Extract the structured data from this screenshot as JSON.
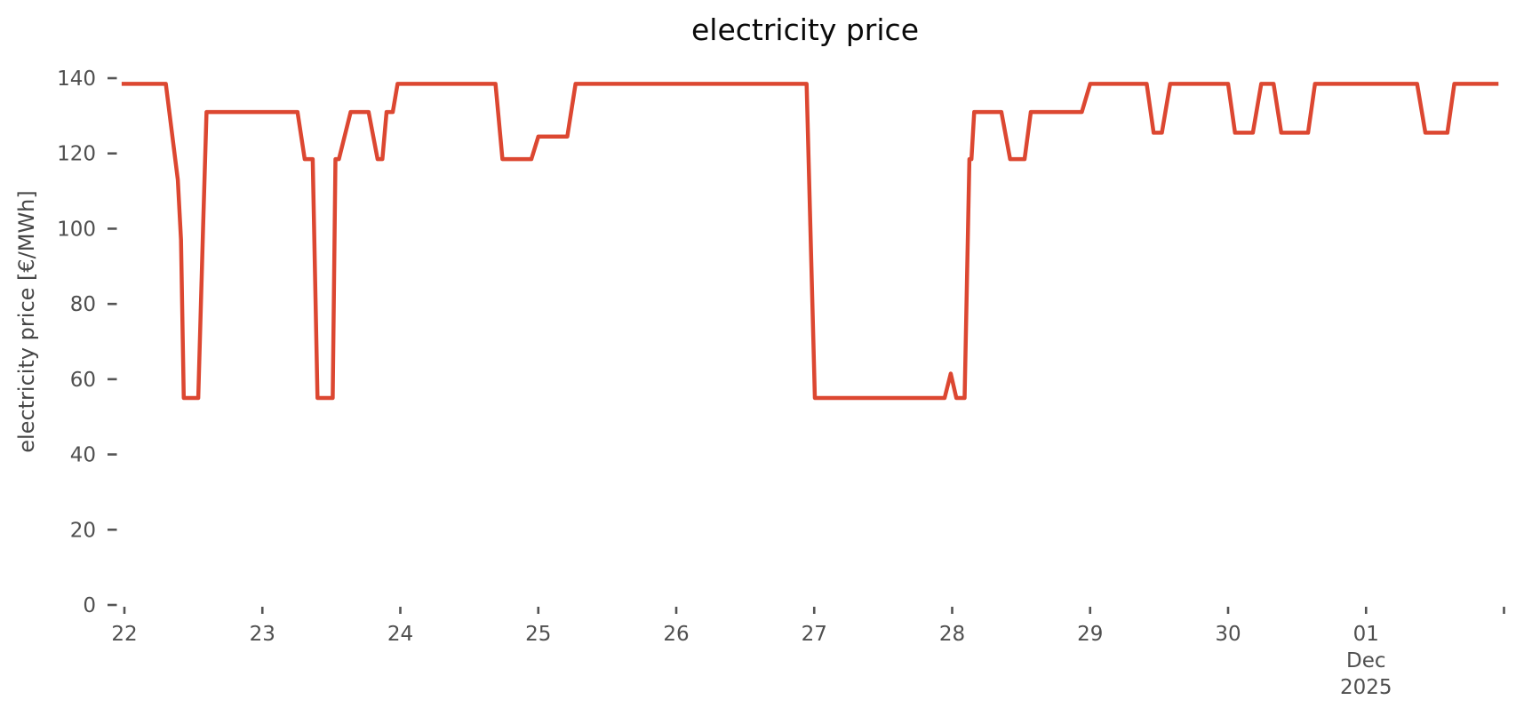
{
  "title": "electricity price",
  "colors": {
    "line": "#dc4731",
    "tick_mark": "#545454",
    "tick_label": "#4f4f4f",
    "axis_title": "#474747",
    "title": "#0a0a0a",
    "background": "#ffffff"
  },
  "chart_data": {
    "type": "line",
    "title": "electricity price",
    "xlabel": "",
    "ylabel": "electricity price [€/MWh]",
    "legend_position": "none",
    "grid": false,
    "ylim": [
      0,
      140
    ],
    "x_range_days": [
      21.86,
      32.0
    ],
    "x_unit_note": "x in day-of-axis units: 22..30 = Nov 22..30 2025, 31 = Dec 01, 32 = Dec 02; fraction = time of day",
    "y_ticks": [
      0,
      20,
      40,
      60,
      80,
      100,
      120,
      140
    ],
    "x_ticks": [
      {
        "pos": 22,
        "label": "22"
      },
      {
        "pos": 23,
        "label": "23"
      },
      {
        "pos": 24,
        "label": "24"
      },
      {
        "pos": 25,
        "label": "25"
      },
      {
        "pos": 26,
        "label": "26"
      },
      {
        "pos": 27,
        "label": "27"
      },
      {
        "pos": 28,
        "label": "28"
      },
      {
        "pos": 29,
        "label": "29"
      },
      {
        "pos": 30,
        "label": "30"
      },
      {
        "pos": 31,
        "label": "01",
        "sublabels": [
          "Dec",
          "2025"
        ]
      },
      {
        "pos": 32,
        "label": ""
      }
    ],
    "series": [
      {
        "name": "electricity price",
        "color": "#dc4731",
        "points": [
          [
            21.98,
            138.5
          ],
          [
            22.3,
            138.5
          ],
          [
            22.387,
            113
          ],
          [
            22.41,
            97
          ],
          [
            22.43,
            55
          ],
          [
            22.535,
            55
          ],
          [
            22.57,
            100
          ],
          [
            22.595,
            131
          ],
          [
            23.255,
            131
          ],
          [
            23.307,
            118.5
          ],
          [
            23.365,
            118.5
          ],
          [
            23.4,
            55
          ],
          [
            23.51,
            55
          ],
          [
            23.53,
            118.5
          ],
          [
            23.555,
            118.5
          ],
          [
            23.64,
            131
          ],
          [
            23.77,
            131
          ],
          [
            23.835,
            118.5
          ],
          [
            23.87,
            118.5
          ],
          [
            23.9,
            131
          ],
          [
            23.945,
            131
          ],
          [
            23.98,
            138.5
          ],
          [
            24.69,
            138.5
          ],
          [
            24.74,
            118.5
          ],
          [
            24.95,
            118.5
          ],
          [
            25.0,
            124.5
          ],
          [
            25.21,
            124.5
          ],
          [
            25.27,
            138.5
          ],
          [
            26.945,
            138.5
          ],
          [
            27.005,
            55
          ],
          [
            27.945,
            55
          ],
          [
            27.99,
            61.5
          ],
          [
            28.03,
            55
          ],
          [
            28.09,
            55
          ],
          [
            28.125,
            118.5
          ],
          [
            28.14,
            118.5
          ],
          [
            28.16,
            131
          ],
          [
            28.357,
            131
          ],
          [
            28.42,
            118.5
          ],
          [
            28.525,
            118.5
          ],
          [
            28.57,
            131
          ],
          [
            28.94,
            131
          ],
          [
            29.0,
            138.5
          ],
          [
            29.41,
            138.5
          ],
          [
            29.46,
            125.5
          ],
          [
            29.52,
            125.5
          ],
          [
            29.58,
            138.5
          ],
          [
            30.0,
            138.5
          ],
          [
            30.05,
            125.5
          ],
          [
            30.18,
            125.5
          ],
          [
            30.24,
            138.5
          ],
          [
            30.33,
            138.5
          ],
          [
            30.385,
            125.5
          ],
          [
            30.58,
            125.5
          ],
          [
            30.63,
            138.5
          ],
          [
            31.37,
            138.5
          ],
          [
            31.43,
            125.5
          ],
          [
            31.59,
            125.5
          ],
          [
            31.64,
            138.5
          ],
          [
            31.96,
            138.5
          ]
        ]
      }
    ]
  }
}
